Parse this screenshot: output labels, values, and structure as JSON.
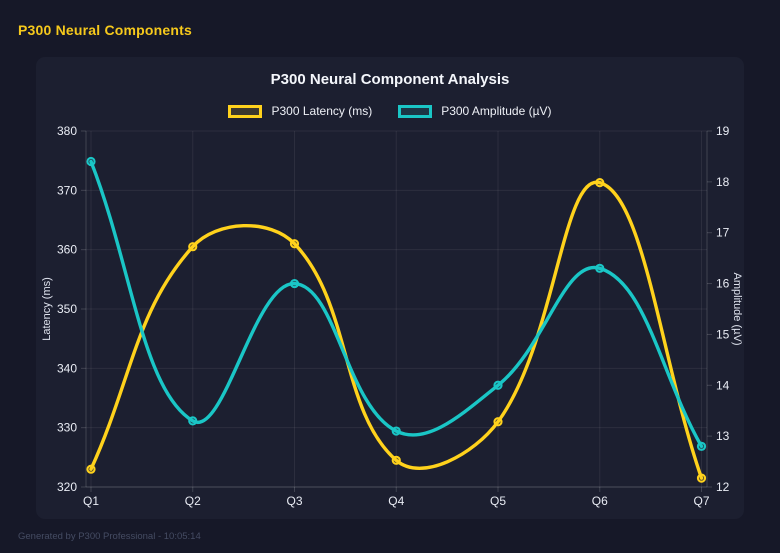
{
  "header": {
    "title": "P300 Neural Components"
  },
  "footer": {
    "text": "Generated by P300 Professional - 10:05:14"
  },
  "colors": {
    "background": "#161828",
    "panel": "#1c1f30",
    "latency_line": "#ffd21c",
    "amplitude_line": "#1ac6c6",
    "grid": "rgba(255,255,255,0.07)",
    "axis_border": "rgba(255,255,255,0.16)",
    "tick_text": "#e9ecf4",
    "title_text": "#f4f6fb",
    "header_text": "#f6c91c"
  },
  "chart_data": {
    "type": "line",
    "title": "P300 Neural Component Analysis",
    "categories": [
      "Q1",
      "Q2",
      "Q3",
      "Q4",
      "Q5",
      "Q6",
      "Q7"
    ],
    "series": [
      {
        "name": "P300 Latency (ms)",
        "axis": "left",
        "color": "#ffd21c",
        "values": [
          323,
          360.5,
          361,
          324.5,
          331,
          371.3,
          321.5
        ]
      },
      {
        "name": "P300 Amplitude (µV)",
        "axis": "right",
        "color": "#1ac6c6",
        "values": [
          18.4,
          13.3,
          16.0,
          13.1,
          14.0,
          16.3,
          12.8
        ]
      }
    ],
    "left_axis": {
      "label": "Latency (ms)",
      "min": 320,
      "max": 380,
      "ticks": [
        320,
        330,
        340,
        350,
        360,
        370,
        380
      ]
    },
    "right_axis": {
      "label": "Amplitude (µV)",
      "min": 12,
      "max": 19,
      "ticks": [
        12,
        13,
        14,
        15,
        16,
        17,
        18,
        19
      ]
    },
    "grid": true,
    "legend_position": "top",
    "line_tension": 0.4
  }
}
